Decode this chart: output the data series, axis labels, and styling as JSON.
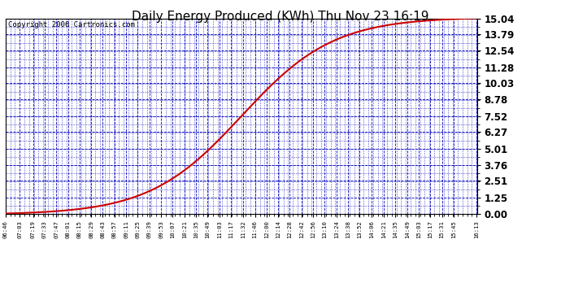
{
  "title": "Daily Energy Produced (KWh) Thu Nov 23 16:19",
  "copyright_text": "Copyright 2006 Cartronics.com",
  "yticks": [
    0.0,
    1.25,
    2.51,
    3.76,
    5.01,
    6.27,
    7.52,
    8.78,
    10.03,
    11.28,
    12.54,
    13.79,
    15.04
  ],
  "ymax": 15.04,
  "ymin": 0.0,
  "line_color": "#cc0000",
  "grid_color": "#0000bb",
  "background_color": "#ffffff",
  "plot_bg_color": "#ffffff",
  "title_fontsize": 11,
  "copyright_fontsize": 6.5,
  "xtick_labels": [
    "06:46",
    "07:03",
    "07:19",
    "07:33",
    "07:47",
    "08:01",
    "08:15",
    "08:29",
    "08:43",
    "08:57",
    "09:11",
    "09:25",
    "09:39",
    "09:53",
    "10:07",
    "10:21",
    "10:35",
    "10:49",
    "11:03",
    "11:17",
    "11:32",
    "11:46",
    "12:00",
    "12:14",
    "12:28",
    "12:42",
    "12:56",
    "13:10",
    "13:24",
    "13:38",
    "13:52",
    "14:06",
    "14:21",
    "14:35",
    "14:49",
    "15:03",
    "15:17",
    "15:31",
    "15:45",
    "16:13"
  ],
  "curve_midpoint": 690,
  "curve_k": 0.018
}
